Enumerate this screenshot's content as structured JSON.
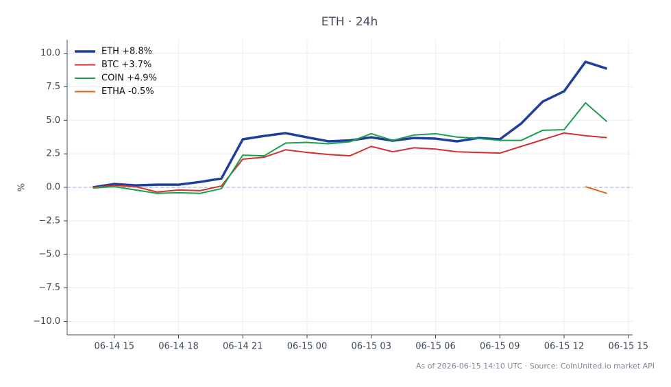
{
  "chart_data": {
    "type": "line",
    "title": "ETH · 24h",
    "ylabel": "%",
    "footnote": "As of 2026-06-15 14:10 UTC · Source: CoinUnited.io market API",
    "x": [
      "06-14 14",
      "06-14 15",
      "06-14 16",
      "06-14 17",
      "06-14 18",
      "06-14 19",
      "06-14 20",
      "06-14 21",
      "06-14 22",
      "06-14 23",
      "06-15 00",
      "06-15 01",
      "06-15 02",
      "06-15 03",
      "06-15 04",
      "06-15 05",
      "06-15 06",
      "06-15 07",
      "06-15 08",
      "06-15 09",
      "06-15 10",
      "06-15 11",
      "06-15 12",
      "06-15 13",
      "06-15 14"
    ],
    "series": [
      {
        "name": "ETH +8.8%",
        "color": "#1f3f9e",
        "width": 3.5,
        "values": [
          0.0,
          0.25,
          0.15,
          0.2,
          0.2,
          0.4,
          0.66,
          3.58,
          3.83,
          4.04,
          3.73,
          3.43,
          3.5,
          3.73,
          3.48,
          3.68,
          3.63,
          3.43,
          3.68,
          3.58,
          4.76,
          6.39,
          7.16,
          9.36,
          8.85
        ]
      },
      {
        "name": "BTC +3.7%",
        "color": "#d0312d",
        "width": 2,
        "values": [
          0.0,
          0.15,
          0.05,
          -0.35,
          -0.2,
          -0.25,
          0.1,
          2.1,
          2.25,
          2.8,
          2.6,
          2.45,
          2.35,
          3.05,
          2.65,
          2.95,
          2.85,
          2.65,
          2.6,
          2.55,
          3.05,
          3.55,
          4.05,
          3.85,
          3.7
        ]
      },
      {
        "name": "COIN +4.9%",
        "color": "#1a9e4a",
        "width": 2,
        "values": [
          -0.05,
          0.05,
          -0.2,
          -0.45,
          -0.4,
          -0.45,
          -0.1,
          2.4,
          2.35,
          3.3,
          3.35,
          3.25,
          3.4,
          4.0,
          3.5,
          3.9,
          4.0,
          3.75,
          3.65,
          3.5,
          3.5,
          4.25,
          4.3,
          6.3,
          4.9
        ]
      },
      {
        "name": "ETHA -0.5%",
        "color": "#e8610e",
        "width": 2,
        "values": [
          null,
          null,
          null,
          null,
          null,
          null,
          null,
          null,
          null,
          null,
          null,
          null,
          null,
          null,
          null,
          null,
          null,
          null,
          null,
          null,
          null,
          null,
          null,
          0.05,
          -0.45
        ]
      }
    ],
    "xticks": [
      "06-14 15",
      "06-14 18",
      "06-14 21",
      "06-15 00",
      "06-15 03",
      "06-15 06",
      "06-15 09",
      "06-15 12",
      "06-15 15"
    ],
    "ylim": [
      -11,
      11
    ],
    "yticks": [
      {
        "value": -10,
        "label": "−10.0"
      },
      {
        "value": -7.5,
        "label": "−7.5"
      },
      {
        "value": -5,
        "label": "−5.0"
      },
      {
        "value": -2.5,
        "label": "−2.5"
      },
      {
        "value": 0,
        "label": "0.0"
      },
      {
        "value": 2.5,
        "label": "2.5"
      },
      {
        "value": 5,
        "label": "5.0"
      },
      {
        "value": 7.5,
        "label": "7.5"
      },
      {
        "value": 10,
        "label": "10.0"
      }
    ],
    "grid": true,
    "zero_line": true,
    "legend": "upper left"
  }
}
